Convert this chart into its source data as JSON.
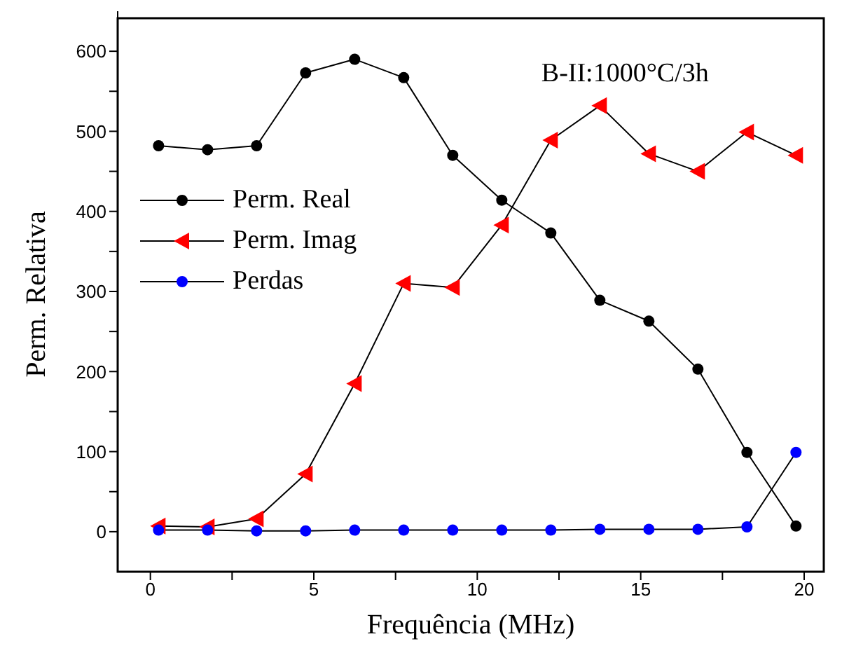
{
  "chart_data": {
    "type": "line",
    "xlabel": "Frequência (MHz)",
    "ylabel": "Perm. Relativa",
    "annotations": [
      "B-II:1000°C/3h"
    ],
    "x": [
      0.25,
      1.75,
      3.25,
      4.75,
      6.25,
      7.75,
      9.25,
      10.75,
      12.25,
      13.75,
      15.25,
      16.75,
      18.25,
      19.75
    ],
    "series": [
      {
        "name": "Perm. Real",
        "color": "#000000",
        "marker": "circle",
        "values": [
          482,
          477,
          482,
          573,
          590,
          567,
          470,
          414,
          373,
          289,
          263,
          203,
          99,
          7
        ]
      },
      {
        "name": "Perm. Imag",
        "color": "#ff0000",
        "marker": "triangle",
        "values": [
          7,
          6,
          16,
          72,
          185,
          310,
          305,
          383,
          489,
          532,
          472,
          450,
          499,
          470
        ]
      },
      {
        "name": "Perdas",
        "color": "#0000ff",
        "marker": "circle",
        "values": [
          2,
          2,
          1,
          1,
          2,
          2,
          2,
          2,
          2,
          3,
          3,
          3,
          6,
          99
        ]
      }
    ],
    "xlim": [
      -1,
      20.6
    ],
    "ylim": [
      -50,
      650
    ],
    "xticks": [
      0,
      {
        "value": 2.5,
        "label": null
      },
      5,
      {
        "value": 7.5,
        "label": null
      },
      10,
      {
        "value": 12.5,
        "label": null
      },
      15,
      {
        "value": 17.5,
        "label": null
      },
      20
    ],
    "yticks": [
      0,
      {
        "value": 50,
        "label": null
      },
      100,
      {
        "value": 150,
        "label": null
      },
      200,
      {
        "value": 250,
        "label": null
      },
      300,
      {
        "value": 350,
        "label": null
      },
      400,
      {
        "value": 450,
        "label": null
      },
      500,
      {
        "value": 550,
        "label": null
      },
      600
    ],
    "legend": "top left"
  }
}
